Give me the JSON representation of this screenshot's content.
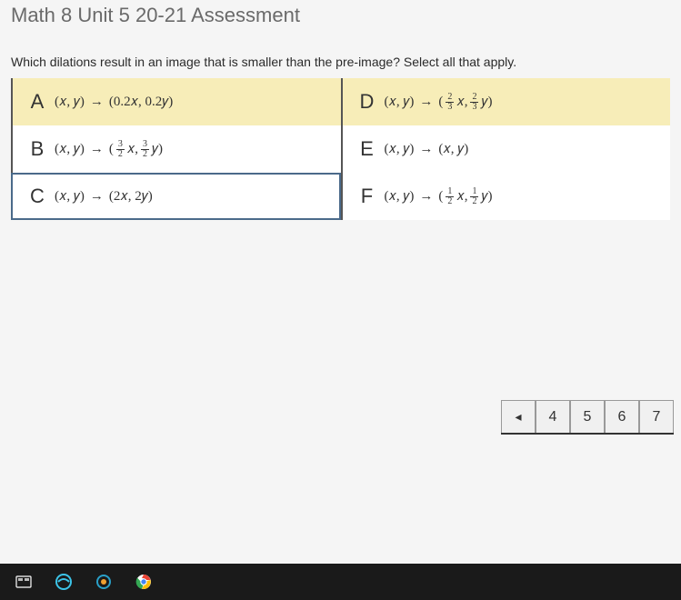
{
  "header": {
    "title": "Math 8 Unit 5 20-21 Assessment"
  },
  "question": {
    "prompt": "Which dilations result in an image that is smaller than the pre-image?  Select all that apply."
  },
  "options": [
    {
      "letter": "A",
      "selected": true,
      "focused": false,
      "lhs": "(x, y)",
      "rhs_type": "plain",
      "rhs": "(0.2x, 0.2y)"
    },
    {
      "letter": "D",
      "selected": true,
      "focused": false,
      "lhs": "(x, y)",
      "rhs_type": "frac",
      "n": "2",
      "d": "3"
    },
    {
      "letter": "B",
      "selected": false,
      "focused": false,
      "lhs": "(x, y)",
      "rhs_type": "frac",
      "n": "3",
      "d": "2"
    },
    {
      "letter": "E",
      "selected": false,
      "focused": false,
      "lhs": "(x, y)",
      "rhs_type": "plain",
      "rhs": "(x, y)"
    },
    {
      "letter": "C",
      "selected": false,
      "focused": true,
      "lhs": "(x, y)",
      "rhs_type": "plain",
      "rhs": "(2x, 2y)"
    },
    {
      "letter": "F",
      "selected": false,
      "focused": false,
      "lhs": "(x, y)",
      "rhs_type": "frac",
      "n": "1",
      "d": "2"
    }
  ],
  "pager": {
    "prev_symbol": "◂",
    "pages": [
      "4",
      "5",
      "6",
      "7"
    ]
  },
  "colors": {
    "selected_bg": "#f7edb8",
    "border": "#555"
  }
}
